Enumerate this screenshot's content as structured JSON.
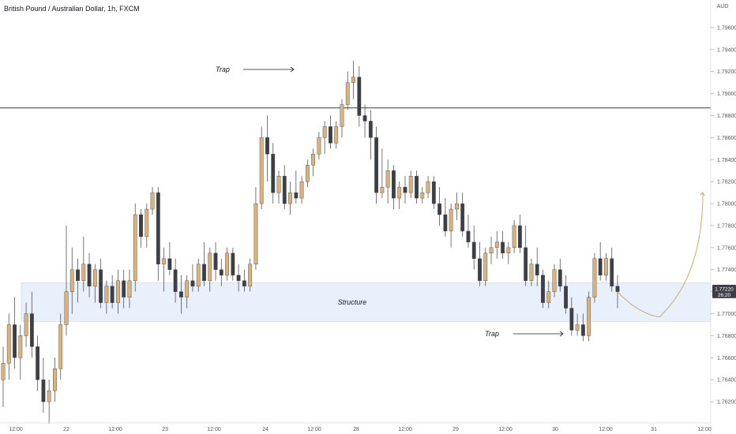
{
  "header": {
    "symbol_title": "British Pound / Australian Dollar, 1h, FXCM"
  },
  "chart_data": {
    "type": "candlestick",
    "currency_label": "AUD",
    "y_ticks": [
      "1.79600",
      "1.79400",
      "1.79200",
      "1.79000",
      "1.78800",
      "1.78600",
      "1.78400",
      "1.78200",
      "1.78000",
      "1.77800",
      "1.77600",
      "1.77400",
      "1.77200",
      "1.77000",
      "1.76800",
      "1.76600",
      "1.76400",
      "1.76200"
    ],
    "ylim": [
      1.7605,
      1.7975
    ],
    "x_ticks": [
      "12:00",
      "22",
      "12:00",
      "23",
      "12:00",
      "24",
      "12:00",
      "28",
      "12:00",
      "29",
      "12:00",
      "30",
      "12:00",
      "31",
      "12:00"
    ],
    "price_badge": {
      "value": "1.77220",
      "time": "26:20"
    },
    "resistance_level": 1.7887,
    "structure_zone": {
      "label": "Structure",
      "top": 1.7728,
      "bottom": 1.7693
    },
    "annotations": [
      {
        "text": "Trap",
        "near": 1.7915
      },
      {
        "text": "Trap",
        "near": 1.768
      }
    ],
    "colors": {
      "up": "#d9b27c",
      "down": "#3d3f47",
      "zone": "#e8f0fc",
      "line": "#3a3a3a"
    },
    "candles": [
      [
        1.764,
        1.767,
        1.7615,
        1.7655
      ],
      [
        1.7655,
        1.77,
        1.764,
        1.769
      ],
      [
        1.769,
        1.7715,
        1.765,
        1.766
      ],
      [
        1.766,
        1.769,
        1.764,
        1.768
      ],
      [
        1.768,
        1.771,
        1.767,
        1.77
      ],
      [
        1.77,
        1.772,
        1.766,
        1.767
      ],
      [
        1.767,
        1.768,
        1.763,
        1.764
      ],
      [
        1.764,
        1.766,
        1.761,
        1.762
      ],
      [
        1.762,
        1.764,
        1.76,
        1.763
      ],
      [
        1.763,
        1.766,
        1.762,
        1.765
      ],
      [
        1.765,
        1.77,
        1.764,
        1.769
      ],
      [
        1.769,
        1.778,
        1.768,
        1.772
      ],
      [
        1.772,
        1.776,
        1.77,
        1.774
      ],
      [
        1.774,
        1.775,
        1.771,
        1.773
      ],
      [
        1.773,
        1.777,
        1.772,
        1.7745
      ],
      [
        1.7745,
        1.7755,
        1.7715,
        1.7725
      ],
      [
        1.7725,
        1.7745,
        1.771,
        1.774
      ],
      [
        1.774,
        1.775,
        1.7705,
        1.771
      ],
      [
        1.771,
        1.773,
        1.77,
        1.7725
      ],
      [
        1.7725,
        1.7735,
        1.7705,
        1.771
      ],
      [
        1.771,
        1.774,
        1.77,
        1.773
      ],
      [
        1.773,
        1.774,
        1.7705,
        1.7715
      ],
      [
        1.7715,
        1.774,
        1.7705,
        1.773
      ],
      [
        1.773,
        1.78,
        1.772,
        1.779
      ],
      [
        1.779,
        1.7795,
        1.776,
        1.777
      ],
      [
        1.777,
        1.78,
        1.776,
        1.7795
      ],
      [
        1.7795,
        1.7815,
        1.779,
        1.781
      ],
      [
        1.781,
        1.7815,
        1.773,
        1.7745
      ],
      [
        1.7745,
        1.776,
        1.772,
        1.775
      ],
      [
        1.775,
        1.7765,
        1.7735,
        1.774
      ],
      [
        1.774,
        1.775,
        1.771,
        1.772
      ],
      [
        1.772,
        1.7735,
        1.77,
        1.7715
      ],
      [
        1.7715,
        1.7735,
        1.7705,
        1.773
      ],
      [
        1.773,
        1.7745,
        1.772,
        1.7725
      ],
      [
        1.7725,
        1.775,
        1.772,
        1.7745
      ],
      [
        1.7745,
        1.7765,
        1.7725,
        1.773
      ],
      [
        1.773,
        1.776,
        1.772,
        1.7755
      ],
      [
        1.7755,
        1.7765,
        1.773,
        1.774
      ],
      [
        1.774,
        1.775,
        1.7725,
        1.7735
      ],
      [
        1.7735,
        1.776,
        1.773,
        1.7755
      ],
      [
        1.7755,
        1.776,
        1.773,
        1.7735
      ],
      [
        1.7735,
        1.7745,
        1.772,
        1.773
      ],
      [
        1.773,
        1.774,
        1.772,
        1.7725
      ],
      [
        1.7725,
        1.775,
        1.772,
        1.7745
      ],
      [
        1.7745,
        1.7815,
        1.774,
        1.78
      ],
      [
        1.78,
        1.787,
        1.7795,
        1.786
      ],
      [
        1.786,
        1.788,
        1.782,
        1.7845
      ],
      [
        1.7845,
        1.7855,
        1.78,
        1.781
      ],
      [
        1.781,
        1.783,
        1.78,
        1.7825
      ],
      [
        1.7825,
        1.7835,
        1.7795,
        1.78
      ],
      [
        1.78,
        1.782,
        1.779,
        1.781
      ],
      [
        1.781,
        1.783,
        1.78,
        1.7805
      ],
      [
        1.7805,
        1.7825,
        1.78,
        1.782
      ],
      [
        1.782,
        1.784,
        1.7815,
        1.7835
      ],
      [
        1.7835,
        1.785,
        1.7825,
        1.7845
      ],
      [
        1.7845,
        1.7865,
        1.784,
        1.786
      ],
      [
        1.786,
        1.7875,
        1.7845,
        1.787
      ],
      [
        1.787,
        1.788,
        1.785,
        1.7855
      ],
      [
        1.7855,
        1.7875,
        1.785,
        1.787
      ],
      [
        1.787,
        1.7895,
        1.786,
        1.789
      ],
      [
        1.789,
        1.792,
        1.7885,
        1.791
      ],
      [
        1.791,
        1.793,
        1.7895,
        1.7915
      ],
      [
        1.7915,
        1.7925,
        1.787,
        1.788
      ],
      [
        1.788,
        1.789,
        1.786,
        1.7875
      ],
      [
        1.7875,
        1.7885,
        1.784,
        1.786
      ],
      [
        1.786,
        1.787,
        1.78,
        1.781
      ],
      [
        1.781,
        1.785,
        1.7805,
        1.7815
      ],
      [
        1.7815,
        1.784,
        1.78,
        1.783
      ],
      [
        1.783,
        1.7835,
        1.7795,
        1.7805
      ],
      [
        1.7805,
        1.782,
        1.7795,
        1.7815
      ],
      [
        1.7815,
        1.7825,
        1.78,
        1.781
      ],
      [
        1.781,
        1.783,
        1.7805,
        1.7825
      ],
      [
        1.7825,
        1.783,
        1.78,
        1.7805
      ],
      [
        1.7805,
        1.7815,
        1.78,
        1.781
      ],
      [
        1.781,
        1.7825,
        1.7805,
        1.782
      ],
      [
        1.782,
        1.7825,
        1.7795,
        1.78
      ],
      [
        1.78,
        1.7815,
        1.778,
        1.779
      ],
      [
        1.779,
        1.7805,
        1.777,
        1.7775
      ],
      [
        1.7775,
        1.78,
        1.776,
        1.7795
      ],
      [
        1.7795,
        1.781,
        1.7785,
        1.78
      ],
      [
        1.78,
        1.781,
        1.777,
        1.7775
      ],
      [
        1.7775,
        1.779,
        1.776,
        1.7765
      ],
      [
        1.7765,
        1.778,
        1.774,
        1.775
      ],
      [
        1.775,
        1.7765,
        1.7725,
        1.773
      ],
      [
        1.773,
        1.776,
        1.7725,
        1.7755
      ],
      [
        1.7755,
        1.777,
        1.7745,
        1.776
      ],
      [
        1.776,
        1.7775,
        1.775,
        1.7765
      ],
      [
        1.7765,
        1.7775,
        1.775,
        1.7755
      ],
      [
        1.7755,
        1.7765,
        1.7745,
        1.776
      ],
      [
        1.776,
        1.7785,
        1.7755,
        1.778
      ],
      [
        1.778,
        1.779,
        1.7755,
        1.776
      ],
      [
        1.776,
        1.778,
        1.7725,
        1.773
      ],
      [
        1.773,
        1.775,
        1.7725,
        1.7745
      ],
      [
        1.7745,
        1.776,
        1.7725,
        1.7735
      ],
      [
        1.7735,
        1.774,
        1.7705,
        1.771
      ],
      [
        1.771,
        1.773,
        1.7705,
        1.772
      ],
      [
        1.772,
        1.7745,
        1.7715,
        1.774
      ],
      [
        1.774,
        1.775,
        1.772,
        1.7725
      ],
      [
        1.7725,
        1.7735,
        1.77,
        1.7705
      ],
      [
        1.7705,
        1.7715,
        1.768,
        1.7685
      ],
      [
        1.7685,
        1.77,
        1.768,
        1.769
      ],
      [
        1.769,
        1.77,
        1.7675,
        1.768
      ],
      [
        1.768,
        1.772,
        1.7675,
        1.7715
      ],
      [
        1.7715,
        1.7755,
        1.771,
        1.775
      ],
      [
        1.775,
        1.7765,
        1.773,
        1.7735
      ],
      [
        1.7735,
        1.7755,
        1.773,
        1.775
      ],
      [
        1.775,
        1.776,
        1.772,
        1.7725
      ],
      [
        1.7725,
        1.7735,
        1.7705,
        1.772
      ]
    ],
    "projection": [
      [
        1.772,
        1.7712
      ],
      [
        1.77,
        1.7698
      ],
      [
        1.7695,
        1.7698
      ],
      [
        1.771,
        1.7725
      ],
      [
        1.776,
        1.781
      ]
    ]
  }
}
